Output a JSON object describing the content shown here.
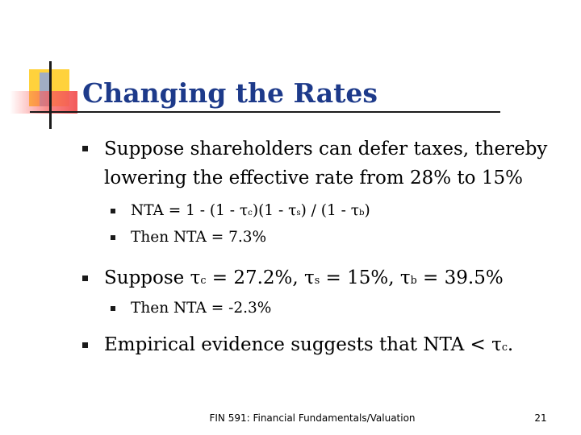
{
  "slide": {
    "title": "Changing the Rates",
    "bullets": {
      "b1_line1": "Suppose shareholders can defer taxes, thereby",
      "b1_line2": "lowering the effective rate from 28% to 15%",
      "b1_sub1": {
        "p1": "NTA = 1 - (1 - ",
        "tau_c": "τ",
        "c": "c",
        "p2": ")(1 - ",
        "tau_s": "τ",
        "s": "s",
        "p3": ") / (1 - ",
        "tau_b": "τ",
        "b": "b",
        "p4": ")"
      },
      "b1_sub2": "Then NTA = 7.3%",
      "b2": {
        "p1": "Suppose ",
        "tau_c": "τ",
        "c": "c",
        "p2": " = 27.2%, ",
        "tau_s": "τ",
        "s": "s",
        "p3": " = 15%, ",
        "tau_b": "τ",
        "b": "b",
        "p4": " = 39.5%"
      },
      "b2_sub1": "Then NTA = -2.3%",
      "b3": {
        "p1": "Empirical evidence suggests that NTA < ",
        "tau_c": "τ",
        "c": "c",
        "p2": "."
      }
    },
    "footer": "FIN 591: Financial Fundamentals/Valuation",
    "page_number": "21"
  }
}
